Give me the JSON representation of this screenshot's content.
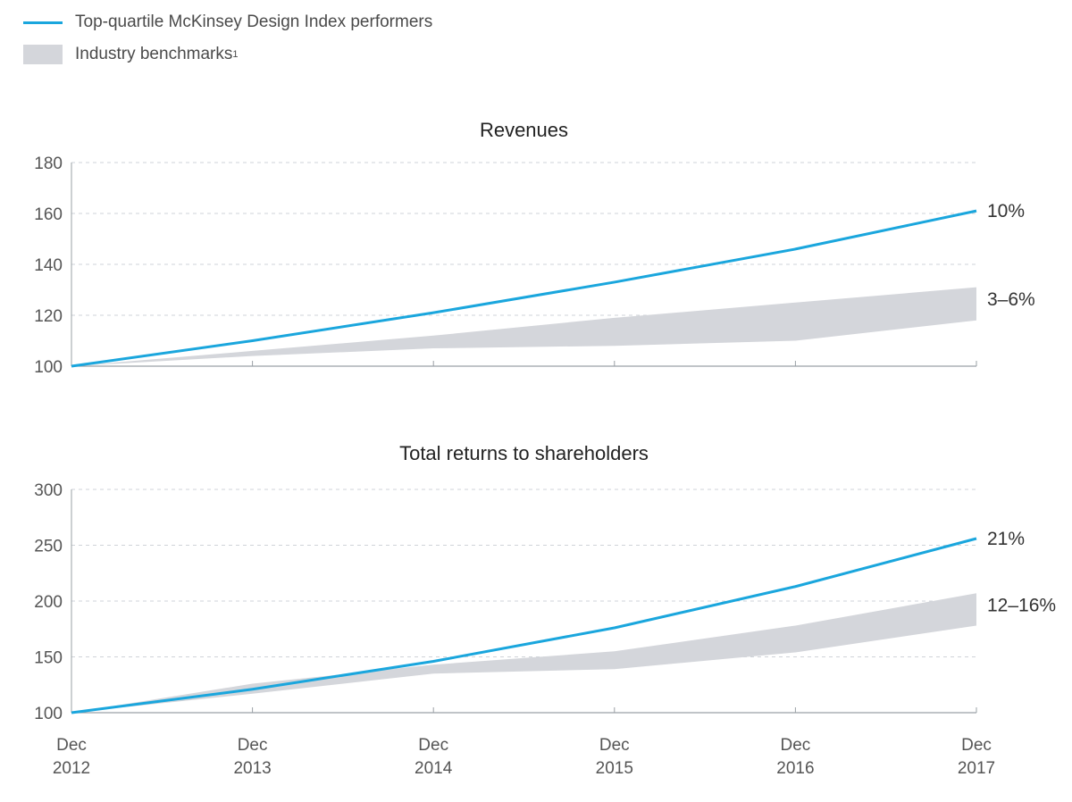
{
  "legend": {
    "top_quartile_label": "Top-quartile McKinsey Design Index performers",
    "benchmark_label": "Industry benchmarks",
    "benchmark_footnote": "1"
  },
  "colors": {
    "line": "#1aa6dd",
    "band": "#d4d6db",
    "grid": "#cfd3d8",
    "axis": "#9aa0a6",
    "text": "#333333"
  },
  "x_axis": {
    "labels": [
      {
        "top": "Dec",
        "bottom": "2012"
      },
      {
        "top": "Dec",
        "bottom": "2013"
      },
      {
        "top": "Dec",
        "bottom": "2014"
      },
      {
        "top": "Dec",
        "bottom": "2015"
      },
      {
        "top": "Dec",
        "bottom": "2016"
      },
      {
        "top": "Dec",
        "bottom": "2017"
      }
    ]
  },
  "chart_data": [
    {
      "type": "line",
      "title": "Revenues",
      "x": [
        2012,
        2013,
        2014,
        2015,
        2016,
        2017
      ],
      "ylim": [
        100,
        180
      ],
      "yticks": [
        100,
        120,
        140,
        160,
        180
      ],
      "grid": true,
      "series": [
        {
          "name": "Top-quartile McKinsey Design Index performers",
          "values": [
            100,
            110,
            121,
            133,
            146,
            161
          ],
          "end_label": "10%"
        }
      ],
      "band": {
        "name": "Industry benchmarks",
        "lower": [
          100,
          104,
          107,
          108,
          110,
          118
        ],
        "upper": [
          100,
          106,
          112,
          119,
          125,
          131
        ],
        "end_label": "3–6%"
      }
    },
    {
      "type": "line",
      "title": "Total returns to shareholders",
      "x": [
        2012,
        2013,
        2014,
        2015,
        2016,
        2017
      ],
      "ylim": [
        100,
        300
      ],
      "yticks": [
        100,
        150,
        200,
        250,
        300
      ],
      "grid": true,
      "series": [
        {
          "name": "Top-quartile McKinsey Design Index performers",
          "values": [
            100,
            121,
            146,
            176,
            213,
            256
          ],
          "end_label": "21%"
        }
      ],
      "band": {
        "name": "Industry benchmarks",
        "lower": [
          100,
          117,
          135,
          139,
          154,
          178
        ],
        "upper": [
          100,
          126,
          143,
          155,
          178,
          207
        ],
        "end_label": "12–16%"
      }
    }
  ]
}
